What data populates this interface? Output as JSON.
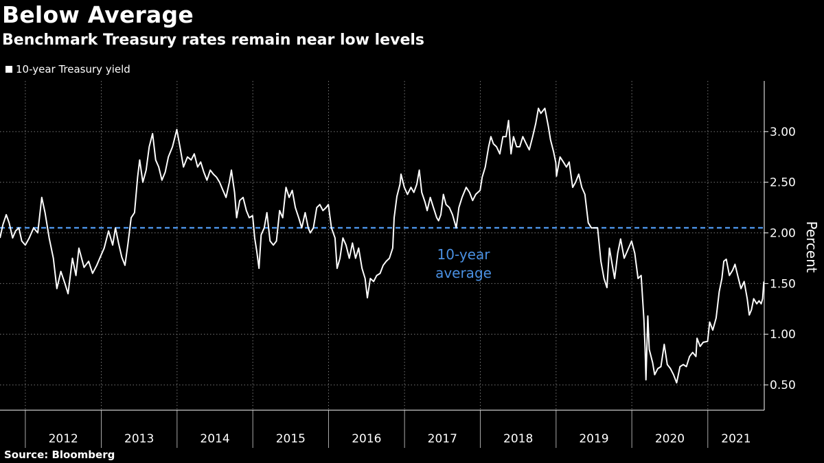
{
  "title": "Below Average",
  "subtitle": "Benchmark Treasury rates remain near low levels",
  "legend": {
    "label": "10-year Treasury yield",
    "color": "#ffffff"
  },
  "source": "Source: Bloomberg",
  "chart_data": {
    "type": "line",
    "title": "Below Average",
    "subtitle": "Benchmark Treasury rates remain near low levels",
    "xlabel": "",
    "ylabel": "Percent",
    "x_tick_labels": [
      "2012",
      "2013",
      "2014",
      "2015",
      "2016",
      "2017",
      "2018",
      "2019",
      "2020",
      "2021"
    ],
    "y_tick_labels": [
      "0.50",
      "1.00",
      "1.50",
      "2.00",
      "2.50",
      "3.00"
    ],
    "y_ticks": [
      0.5,
      1.0,
      1.5,
      2.0,
      2.5,
      3.0
    ],
    "ylim": [
      0.25,
      3.5
    ],
    "xlim": [
      "2011-09-01",
      "2021-09-30"
    ],
    "grid": true,
    "legend_position": "top-left",
    "series": [
      {
        "name": "10-year Treasury yield",
        "color": "#ffffff",
        "points": [
          [
            "2011-09-01",
            1.95
          ],
          [
            "2011-09-15",
            2.08
          ],
          [
            "2011-10-01",
            2.18
          ],
          [
            "2011-10-15",
            2.1
          ],
          [
            "2011-11-01",
            1.95
          ],
          [
            "2011-11-15",
            2.02
          ],
          [
            "2011-12-01",
            2.05
          ],
          [
            "2011-12-15",
            1.92
          ],
          [
            "2012-01-01",
            1.88
          ],
          [
            "2012-01-20",
            1.95
          ],
          [
            "2012-02-10",
            2.05
          ],
          [
            "2012-03-01",
            2.0
          ],
          [
            "2012-03-20",
            2.35
          ],
          [
            "2012-04-05",
            2.2
          ],
          [
            "2012-04-25",
            1.95
          ],
          [
            "2012-05-15",
            1.75
          ],
          [
            "2012-06-01",
            1.45
          ],
          [
            "2012-06-20",
            1.62
          ],
          [
            "2012-07-10",
            1.5
          ],
          [
            "2012-07-25",
            1.4
          ],
          [
            "2012-08-15",
            1.75
          ],
          [
            "2012-09-01",
            1.58
          ],
          [
            "2012-09-15",
            1.85
          ],
          [
            "2012-10-10",
            1.66
          ],
          [
            "2012-11-01",
            1.72
          ],
          [
            "2012-11-20",
            1.6
          ],
          [
            "2012-12-10",
            1.68
          ],
          [
            "2012-12-31",
            1.78
          ],
          [
            "2013-01-15",
            1.85
          ],
          [
            "2013-02-05",
            2.02
          ],
          [
            "2013-02-25",
            1.88
          ],
          [
            "2013-03-10",
            2.05
          ],
          [
            "2013-03-25",
            1.9
          ],
          [
            "2013-04-10",
            1.76
          ],
          [
            "2013-04-25",
            1.68
          ],
          [
            "2013-05-10",
            1.9
          ],
          [
            "2013-05-25",
            2.15
          ],
          [
            "2013-06-10",
            2.2
          ],
          [
            "2013-06-25",
            2.55
          ],
          [
            "2013-07-05",
            2.72
          ],
          [
            "2013-07-20",
            2.5
          ],
          [
            "2013-08-05",
            2.62
          ],
          [
            "2013-08-20",
            2.85
          ],
          [
            "2013-09-05",
            2.98
          ],
          [
            "2013-09-20",
            2.72
          ],
          [
            "2013-10-05",
            2.65
          ],
          [
            "2013-10-20",
            2.52
          ],
          [
            "2013-11-05",
            2.6
          ],
          [
            "2013-11-20",
            2.75
          ],
          [
            "2013-12-10",
            2.85
          ],
          [
            "2013-12-31",
            3.02
          ],
          [
            "2014-01-15",
            2.85
          ],
          [
            "2014-02-01",
            2.65
          ],
          [
            "2014-02-20",
            2.75
          ],
          [
            "2014-03-10",
            2.72
          ],
          [
            "2014-03-25",
            2.78
          ],
          [
            "2014-04-10",
            2.65
          ],
          [
            "2014-04-25",
            2.7
          ],
          [
            "2014-05-10",
            2.6
          ],
          [
            "2014-05-25",
            2.52
          ],
          [
            "2014-06-10",
            2.62
          ],
          [
            "2014-06-25",
            2.58
          ],
          [
            "2014-07-10",
            2.55
          ],
          [
            "2014-07-25",
            2.5
          ],
          [
            "2014-08-10",
            2.42
          ],
          [
            "2014-08-25",
            2.35
          ],
          [
            "2014-09-10",
            2.5
          ],
          [
            "2014-09-20",
            2.62
          ],
          [
            "2014-10-05",
            2.4
          ],
          [
            "2014-10-15",
            2.15
          ],
          [
            "2014-10-30",
            2.32
          ],
          [
            "2014-11-15",
            2.35
          ],
          [
            "2014-12-01",
            2.22
          ],
          [
            "2014-12-15",
            2.15
          ],
          [
            "2014-12-31",
            2.17
          ],
          [
            "2015-01-10",
            1.95
          ],
          [
            "2015-01-20",
            1.82
          ],
          [
            "2015-01-31",
            1.65
          ],
          [
            "2015-02-10",
            1.98
          ],
          [
            "2015-02-25",
            2.05
          ],
          [
            "2015-03-10",
            2.2
          ],
          [
            "2015-03-25",
            1.92
          ],
          [
            "2015-04-10",
            1.88
          ],
          [
            "2015-04-25",
            1.92
          ],
          [
            "2015-05-10",
            2.22
          ],
          [
            "2015-05-25",
            2.15
          ],
          [
            "2015-06-10",
            2.45
          ],
          [
            "2015-06-25",
            2.35
          ],
          [
            "2015-07-10",
            2.42
          ],
          [
            "2015-07-25",
            2.25
          ],
          [
            "2015-08-10",
            2.15
          ],
          [
            "2015-08-25",
            2.05
          ],
          [
            "2015-09-10",
            2.2
          ],
          [
            "2015-09-25",
            2.05
          ],
          [
            "2015-10-05",
            2.0
          ],
          [
            "2015-10-20",
            2.05
          ],
          [
            "2015-11-05",
            2.25
          ],
          [
            "2015-11-20",
            2.28
          ],
          [
            "2015-12-05",
            2.22
          ],
          [
            "2015-12-20",
            2.25
          ],
          [
            "2015-12-31",
            2.28
          ],
          [
            "2016-01-15",
            2.05
          ],
          [
            "2016-02-01",
            1.95
          ],
          [
            "2016-02-11",
            1.65
          ],
          [
            "2016-02-25",
            1.75
          ],
          [
            "2016-03-10",
            1.95
          ],
          [
            "2016-03-25",
            1.88
          ],
          [
            "2016-04-10",
            1.75
          ],
          [
            "2016-04-25",
            1.9
          ],
          [
            "2016-05-10",
            1.75
          ],
          [
            "2016-05-25",
            1.85
          ],
          [
            "2016-06-10",
            1.65
          ],
          [
            "2016-06-25",
            1.55
          ],
          [
            "2016-07-06",
            1.36
          ],
          [
            "2016-07-20",
            1.55
          ],
          [
            "2016-08-05",
            1.52
          ],
          [
            "2016-08-20",
            1.58
          ],
          [
            "2016-09-05",
            1.6
          ],
          [
            "2016-09-20",
            1.68
          ],
          [
            "2016-10-05",
            1.72
          ],
          [
            "2016-10-20",
            1.75
          ],
          [
            "2016-11-05",
            1.85
          ],
          [
            "2016-11-12",
            2.15
          ],
          [
            "2016-11-25",
            2.36
          ],
          [
            "2016-12-10",
            2.48
          ],
          [
            "2016-12-15",
            2.58
          ],
          [
            "2016-12-31",
            2.45
          ],
          [
            "2017-01-15",
            2.38
          ],
          [
            "2017-02-01",
            2.45
          ],
          [
            "2017-02-15",
            2.4
          ],
          [
            "2017-03-01",
            2.48
          ],
          [
            "2017-03-13",
            2.62
          ],
          [
            "2017-03-25",
            2.4
          ],
          [
            "2017-04-10",
            2.3
          ],
          [
            "2017-04-20",
            2.22
          ],
          [
            "2017-05-05",
            2.35
          ],
          [
            "2017-05-20",
            2.25
          ],
          [
            "2017-06-05",
            2.15
          ],
          [
            "2017-06-14",
            2.12
          ],
          [
            "2017-06-25",
            2.18
          ],
          [
            "2017-07-07",
            2.38
          ],
          [
            "2017-07-20",
            2.28
          ],
          [
            "2017-08-05",
            2.25
          ],
          [
            "2017-08-20",
            2.18
          ],
          [
            "2017-09-07",
            2.05
          ],
          [
            "2017-09-20",
            2.25
          ],
          [
            "2017-10-05",
            2.35
          ],
          [
            "2017-10-25",
            2.45
          ],
          [
            "2017-11-10",
            2.4
          ],
          [
            "2017-11-25",
            2.32
          ],
          [
            "2017-12-10",
            2.38
          ],
          [
            "2017-12-31",
            2.42
          ],
          [
            "2018-01-10",
            2.55
          ],
          [
            "2018-01-25",
            2.65
          ],
          [
            "2018-02-10",
            2.85
          ],
          [
            "2018-02-21",
            2.95
          ],
          [
            "2018-03-05",
            2.88
          ],
          [
            "2018-03-20",
            2.85
          ],
          [
            "2018-04-05",
            2.78
          ],
          [
            "2018-04-20",
            2.95
          ],
          [
            "2018-05-05",
            2.95
          ],
          [
            "2018-05-17",
            3.11
          ],
          [
            "2018-05-29",
            2.78
          ],
          [
            "2018-06-10",
            2.95
          ],
          [
            "2018-06-25",
            2.85
          ],
          [
            "2018-07-10",
            2.85
          ],
          [
            "2018-07-25",
            2.95
          ],
          [
            "2018-08-10",
            2.88
          ],
          [
            "2018-08-25",
            2.82
          ],
          [
            "2018-09-10",
            2.95
          ],
          [
            "2018-09-25",
            3.08
          ],
          [
            "2018-10-08",
            3.23
          ],
          [
            "2018-10-20",
            3.18
          ],
          [
            "2018-11-08",
            3.23
          ],
          [
            "2018-11-25",
            3.05
          ],
          [
            "2018-12-05",
            2.92
          ],
          [
            "2018-12-20",
            2.8
          ],
          [
            "2018-12-31",
            2.69
          ],
          [
            "2019-01-03",
            2.56
          ],
          [
            "2019-01-20",
            2.75
          ],
          [
            "2019-02-05",
            2.7
          ],
          [
            "2019-02-20",
            2.65
          ],
          [
            "2019-03-05",
            2.7
          ],
          [
            "2019-03-22",
            2.45
          ],
          [
            "2019-04-05",
            2.5
          ],
          [
            "2019-04-20",
            2.58
          ],
          [
            "2019-05-05",
            2.45
          ],
          [
            "2019-05-20",
            2.38
          ],
          [
            "2019-06-05",
            2.1
          ],
          [
            "2019-06-20",
            2.05
          ],
          [
            "2019-07-05",
            2.05
          ],
          [
            "2019-07-20",
            2.05
          ],
          [
            "2019-08-05",
            1.72
          ],
          [
            "2019-08-20",
            1.55
          ],
          [
            "2019-09-03",
            1.46
          ],
          [
            "2019-09-15",
            1.85
          ],
          [
            "2019-09-30",
            1.67
          ],
          [
            "2019-10-10",
            1.55
          ],
          [
            "2019-10-25",
            1.8
          ],
          [
            "2019-11-08",
            1.94
          ],
          [
            "2019-11-25",
            1.75
          ],
          [
            "2019-12-10",
            1.82
          ],
          [
            "2019-12-31",
            1.92
          ],
          [
            "2020-01-15",
            1.8
          ],
          [
            "2020-01-31",
            1.55
          ],
          [
            "2020-02-15",
            1.58
          ],
          [
            "2020-02-28",
            1.15
          ],
          [
            "2020-03-05",
            0.85
          ],
          [
            "2020-03-09",
            0.55
          ],
          [
            "2020-03-18",
            1.18
          ],
          [
            "2020-03-25",
            0.85
          ],
          [
            "2020-04-10",
            0.72
          ],
          [
            "2020-04-20",
            0.6
          ],
          [
            "2020-05-05",
            0.66
          ],
          [
            "2020-05-20",
            0.68
          ],
          [
            "2020-06-05",
            0.9
          ],
          [
            "2020-06-20",
            0.7
          ],
          [
            "2020-07-05",
            0.66
          ],
          [
            "2020-07-20",
            0.6
          ],
          [
            "2020-08-04",
            0.52
          ],
          [
            "2020-08-20",
            0.68
          ],
          [
            "2020-09-05",
            0.7
          ],
          [
            "2020-09-20",
            0.68
          ],
          [
            "2020-10-05",
            0.78
          ],
          [
            "2020-10-20",
            0.82
          ],
          [
            "2020-11-05",
            0.78
          ],
          [
            "2020-11-10",
            0.96
          ],
          [
            "2020-11-25",
            0.88
          ],
          [
            "2020-12-10",
            0.92
          ],
          [
            "2020-12-31",
            0.93
          ],
          [
            "2021-01-10",
            1.12
          ],
          [
            "2021-01-25",
            1.04
          ],
          [
            "2021-02-10",
            1.16
          ],
          [
            "2021-02-25",
            1.42
          ],
          [
            "2021-03-10",
            1.55
          ],
          [
            "2021-03-19",
            1.72
          ],
          [
            "2021-03-31",
            1.74
          ],
          [
            "2021-04-15",
            1.58
          ],
          [
            "2021-04-30",
            1.63
          ],
          [
            "2021-05-12",
            1.69
          ],
          [
            "2021-05-25",
            1.58
          ],
          [
            "2021-06-10",
            1.45
          ],
          [
            "2021-06-25",
            1.52
          ],
          [
            "2021-07-10",
            1.35
          ],
          [
            "2021-07-20",
            1.19
          ],
          [
            "2021-07-30",
            1.24
          ],
          [
            "2021-08-10",
            1.35
          ],
          [
            "2021-08-25",
            1.3
          ],
          [
            "2021-09-05",
            1.33
          ],
          [
            "2021-09-15",
            1.3
          ],
          [
            "2021-09-22",
            1.35
          ],
          [
            "2021-09-28",
            1.52
          ]
        ]
      }
    ],
    "reference_lines": [
      {
        "label": "10-year average",
        "label_lines": [
          "10-year",
          "average"
        ],
        "value": 2.05,
        "color": "#4a90e2",
        "style": "dashed"
      }
    ]
  }
}
